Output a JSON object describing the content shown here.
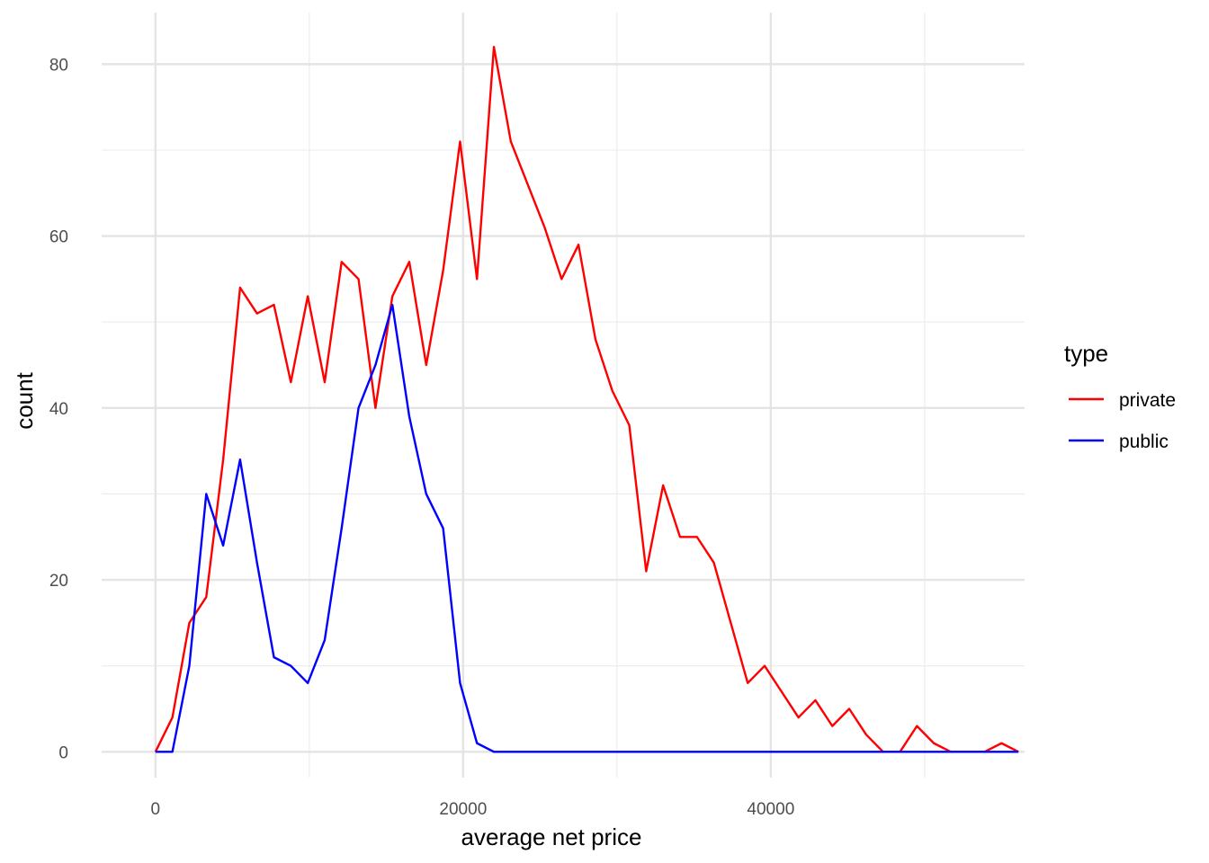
{
  "chart_data": {
    "type": "line",
    "title": "",
    "xlabel": "average net price",
    "ylabel": "count",
    "xlim": [
      -3500,
      56500
    ],
    "ylim": [
      -3,
      86
    ],
    "x_ticks": [
      0,
      20000,
      40000
    ],
    "x_tick_labels": [
      "0",
      "20000",
      "40000"
    ],
    "y_ticks": [
      0,
      20,
      40,
      60,
      80
    ],
    "y_tick_labels": [
      "0",
      "20",
      "40",
      "60",
      "80"
    ],
    "x_minor_ticks": [
      10000,
      30000,
      50000
    ],
    "y_minor_ticks": [
      10,
      30,
      50,
      70
    ],
    "grid": true,
    "legend": {
      "title": "type",
      "position": "right"
    },
    "x": [
      0,
      1100,
      2200,
      3300,
      4400,
      5500,
      6600,
      7700,
      8800,
      9900,
      11000,
      12100,
      13200,
      14300,
      15400,
      16500,
      17600,
      18700,
      19800,
      20900,
      22000,
      23100,
      24200,
      25300,
      26400,
      27500,
      28600,
      29700,
      30800,
      31900,
      33000,
      34100,
      35200,
      36300,
      37400,
      38500,
      39600,
      40700,
      41800,
      42900,
      44000,
      45100,
      46200,
      47300,
      48400,
      49500,
      50600,
      51700,
      52800,
      53900,
      55000,
      56100
    ],
    "series": [
      {
        "name": "private",
        "color": "#ff0000",
        "values": [
          0,
          4,
          15,
          18,
          34,
          54,
          51,
          52,
          43,
          53,
          43,
          57,
          55,
          40,
          53,
          57,
          45,
          56,
          71,
          55,
          82,
          71,
          66,
          61,
          55,
          59,
          48,
          42,
          38,
          21,
          31,
          25,
          25,
          22,
          15,
          8,
          10,
          7,
          4,
          6,
          3,
          5,
          2,
          0,
          0,
          3,
          1,
          0,
          0,
          0,
          1,
          0
        ]
      },
      {
        "name": "public",
        "color": "#0000ff",
        "values": [
          0,
          0,
          10,
          30,
          24,
          34,
          22,
          11,
          10,
          8,
          13,
          26,
          40,
          45,
          52,
          39,
          30,
          26,
          8,
          1,
          0,
          0,
          0,
          0,
          0,
          0,
          0,
          0,
          0,
          0,
          0,
          0,
          0,
          0,
          0,
          0,
          0,
          0,
          0,
          0,
          0,
          0,
          0,
          0,
          0,
          0,
          0,
          0,
          0,
          0,
          0,
          0
        ]
      }
    ]
  }
}
